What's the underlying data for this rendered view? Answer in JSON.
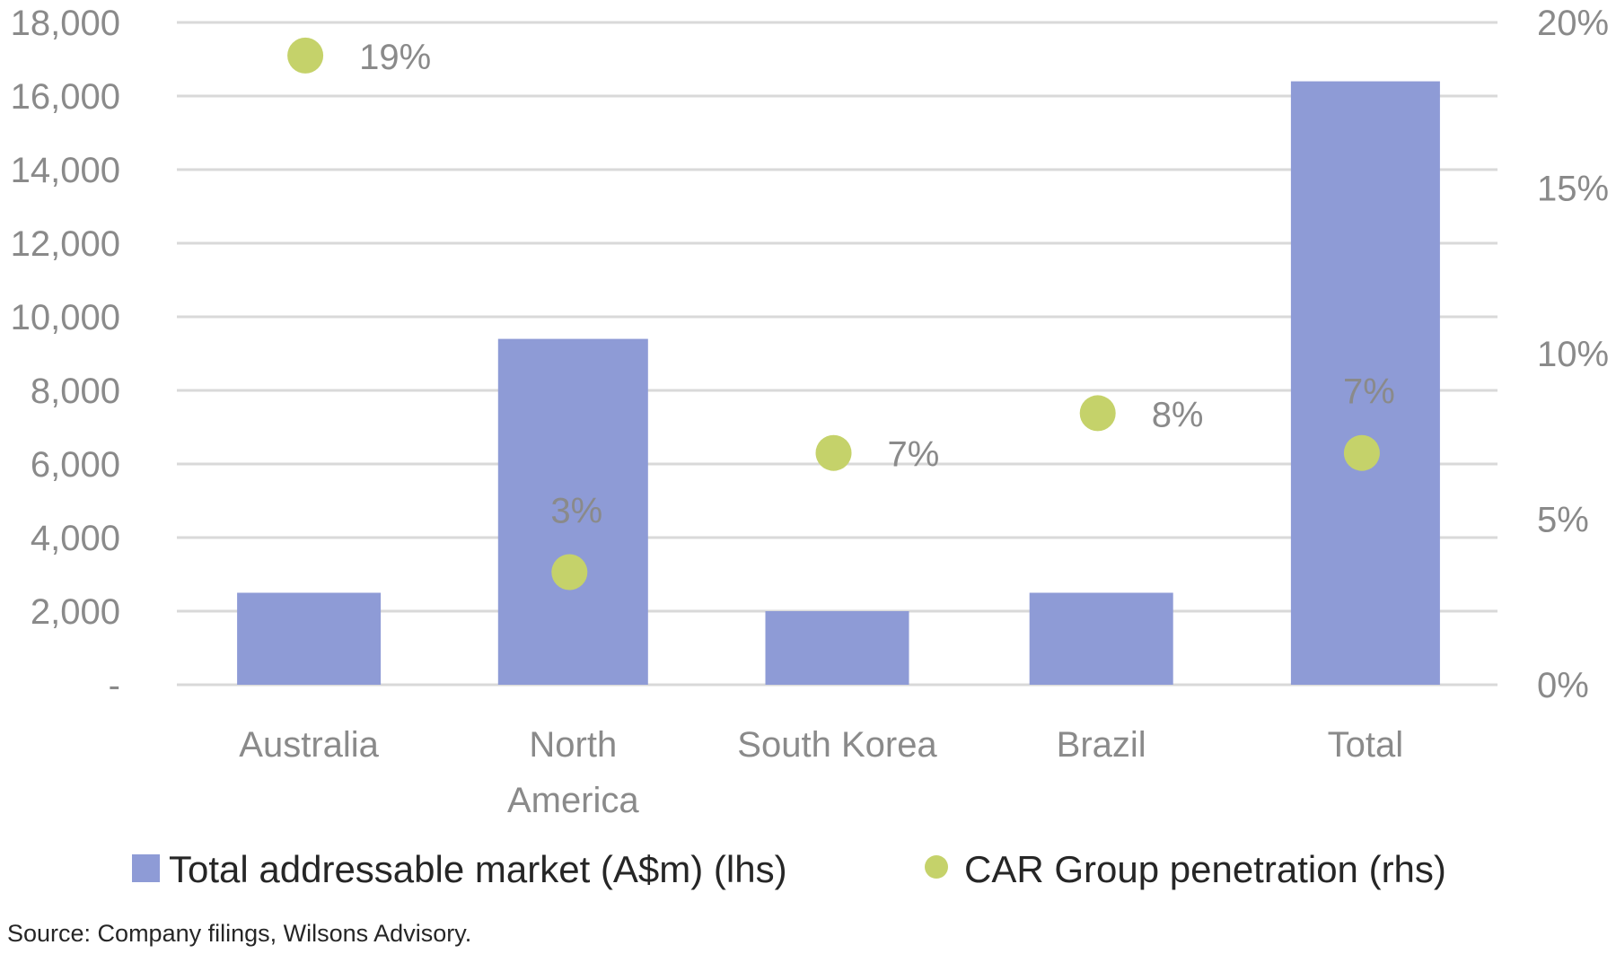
{
  "chart_data": {
    "type": "bar",
    "categories": [
      [
        "Australia"
      ],
      [
        "North",
        "America"
      ],
      [
        "South Korea"
      ],
      [
        "Brazil"
      ],
      [
        "Total"
      ]
    ],
    "series": [
      {
        "name": "Total addressable market (A$m) (lhs)",
        "kind": "bar",
        "axis": "left",
        "color": "#8e9bd6",
        "values": [
          2500,
          9400,
          2000,
          2500,
          16400
        ]
      },
      {
        "name": "CAR Group penetration (rhs)",
        "kind": "scatter",
        "axis": "right",
        "color": "#c5d26a",
        "values": [
          19,
          3.4,
          7,
          8.2,
          7
        ],
        "labels": [
          "19%",
          "3%",
          "7%",
          "8%",
          "7%"
        ],
        "label_positions": [
          "right",
          "above",
          "right",
          "right",
          "above"
        ]
      }
    ],
    "y_left": {
      "ylim": [
        0,
        18000
      ],
      "ticks": [
        0,
        2000,
        4000,
        6000,
        8000,
        10000,
        12000,
        14000,
        16000,
        18000
      ],
      "tick_labels": [
        "-",
        "2,000",
        "4,000",
        "6,000",
        "8,000",
        "10,000",
        "12,000",
        "14,000",
        "16,000",
        "18,000"
      ]
    },
    "y_right": {
      "ylim": [
        0,
        20
      ],
      "ticks": [
        0,
        5,
        10,
        15,
        20
      ],
      "tick_labels": [
        "0%",
        "5%",
        "10%",
        "15%",
        "20%"
      ]
    },
    "grid": true,
    "legend_position": "bottom",
    "source": "Source: Company filings, Wilsons Advisory."
  }
}
